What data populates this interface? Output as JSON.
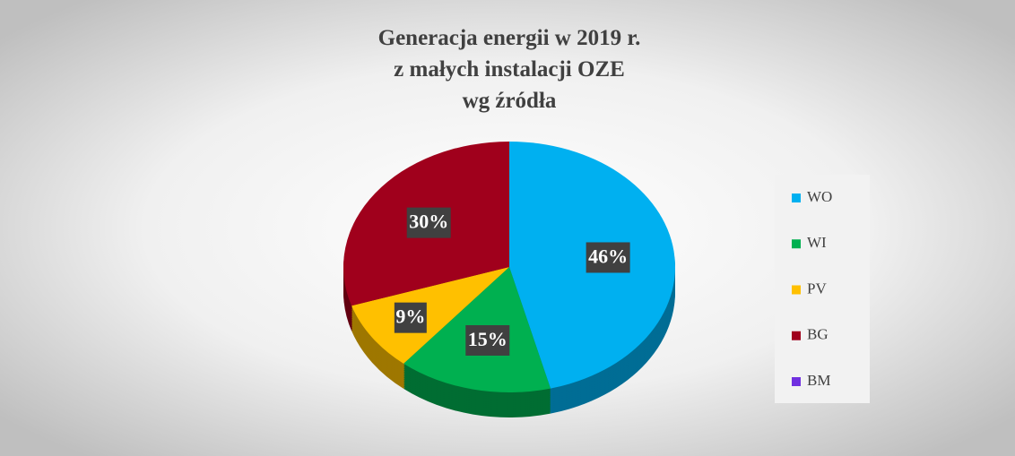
{
  "chart_data": {
    "type": "pie",
    "title": [
      "Generacja energii  w 2019  r.",
      "z małych instalacji OZE",
      "wg źródła"
    ],
    "categories": [
      "WO",
      "WI",
      "PV",
      "BG",
      "BM"
    ],
    "values": [
      46,
      15,
      9,
      30,
      0
    ],
    "value_labels": [
      "46%",
      "15%",
      "9%",
      "30%",
      null
    ],
    "colors": [
      "#00b0f0",
      "#00b050",
      "#ffc000",
      "#a0001c",
      "#7030e0"
    ],
    "legend": "right"
  }
}
